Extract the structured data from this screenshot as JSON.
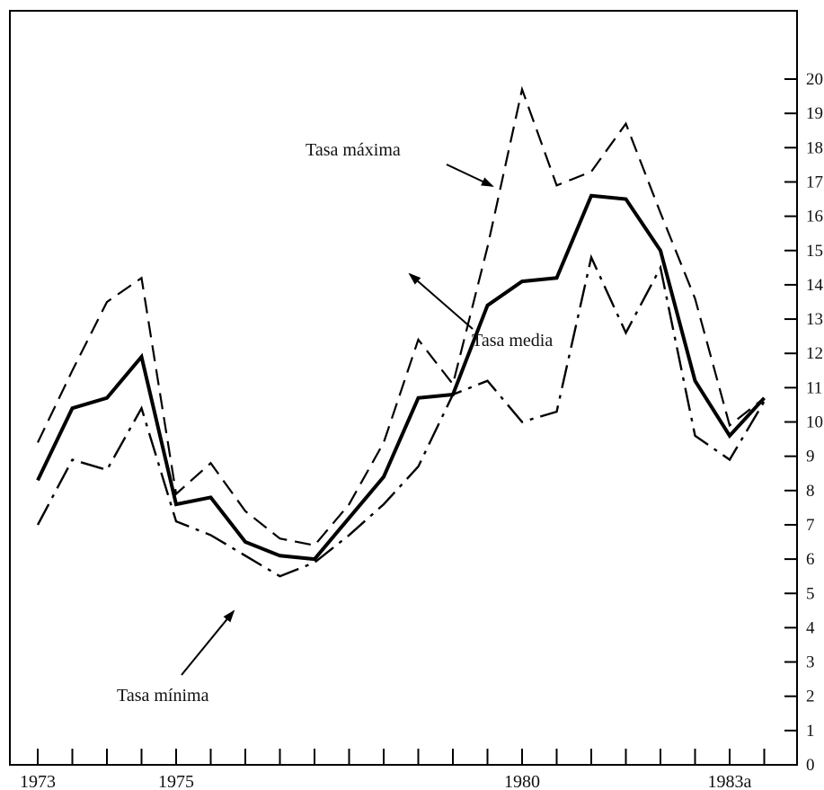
{
  "chart_data": {
    "type": "line",
    "title": "",
    "xlabel": "",
    "ylabel": "",
    "ylim": [
      0,
      20
    ],
    "y_ticks": [
      0,
      1,
      2,
      3,
      4,
      5,
      6,
      7,
      8,
      9,
      10,
      11,
      12,
      13,
      14,
      15,
      16,
      17,
      18,
      19,
      20
    ],
    "y_axis_side": "right",
    "grid": false,
    "legend": "none (series labelled by annotations with arrows)",
    "x_tick_labels": [
      {
        "label": "1973",
        "x": 0
      },
      {
        "label": "1975",
        "x": 2
      },
      {
        "label": "1980",
        "x": 7
      },
      {
        "label": "1983a",
        "x": 10
      }
    ],
    "x_ticks": [
      0,
      0.5,
      1,
      1.5,
      2,
      2.5,
      3,
      3.5,
      4,
      4.5,
      5,
      5.5,
      6,
      6.5,
      7,
      7.5,
      8,
      8.5,
      9,
      9.5,
      10,
      10.5
    ],
    "series": [
      {
        "name": "Tasa máxima",
        "style": "dashed",
        "points": [
          [
            0,
            9.4
          ],
          [
            0.5,
            11.5
          ],
          [
            1,
            13.5
          ],
          [
            1.5,
            14.2
          ],
          [
            2,
            7.9
          ],
          [
            2.5,
            8.8
          ],
          [
            3,
            7.4
          ],
          [
            3.5,
            6.6
          ],
          [
            4,
            6.4
          ],
          [
            4.5,
            7.6
          ],
          [
            5,
            9.4
          ],
          [
            5.5,
            12.4
          ],
          [
            6,
            11.1
          ],
          [
            6.5,
            15.1
          ],
          [
            7,
            19.7
          ],
          [
            7.5,
            16.9
          ],
          [
            8,
            17.3
          ],
          [
            8.5,
            18.7
          ],
          [
            9,
            16.1
          ],
          [
            9.5,
            13.6
          ],
          [
            10,
            9.9
          ],
          [
            10.5,
            10.7
          ]
        ]
      },
      {
        "name": "Tasa media",
        "style": "solid",
        "points": [
          [
            0,
            8.3
          ],
          [
            0.5,
            10.4
          ],
          [
            1,
            10.7
          ],
          [
            1.5,
            11.9
          ],
          [
            2,
            7.6
          ],
          [
            2.5,
            7.8
          ],
          [
            3,
            6.5
          ],
          [
            3.5,
            6.1
          ],
          [
            4,
            6.0
          ],
          [
            4.5,
            7.2
          ],
          [
            5,
            8.4
          ],
          [
            5.5,
            10.7
          ],
          [
            6,
            10.8
          ],
          [
            6.5,
            13.4
          ],
          [
            7,
            14.1
          ],
          [
            7.5,
            14.2
          ],
          [
            8,
            16.6
          ],
          [
            8.5,
            16.5
          ],
          [
            9,
            15.0
          ],
          [
            9.5,
            11.2
          ],
          [
            10,
            9.6
          ],
          [
            10.5,
            10.7
          ]
        ]
      },
      {
        "name": "Tasa mínima",
        "style": "dash-dot",
        "points": [
          [
            0,
            7.0
          ],
          [
            0.5,
            8.9
          ],
          [
            1,
            8.6
          ],
          [
            1.5,
            10.4
          ],
          [
            2,
            7.1
          ],
          [
            2.5,
            6.7
          ],
          [
            3,
            6.1
          ],
          [
            3.5,
            5.5
          ],
          [
            4,
            5.9
          ],
          [
            4.5,
            6.7
          ],
          [
            5,
            7.6
          ],
          [
            5.5,
            8.7
          ],
          [
            6,
            10.8
          ],
          [
            6.5,
            11.2
          ],
          [
            7,
            10.0
          ],
          [
            7.5,
            10.3
          ],
          [
            8,
            14.8
          ],
          [
            8.5,
            12.6
          ],
          [
            9,
            14.5
          ],
          [
            9.5,
            9.6
          ],
          [
            10,
            8.9
          ],
          [
            10.5,
            10.6
          ]
        ]
      }
    ],
    "annotations": [
      {
        "text": "Tasa máxima",
        "series": "Tasa máxima"
      },
      {
        "text": "Tasa media",
        "series": "Tasa media"
      },
      {
        "text": "Tasa mínima",
        "series": "Tasa mínima"
      }
    ]
  }
}
